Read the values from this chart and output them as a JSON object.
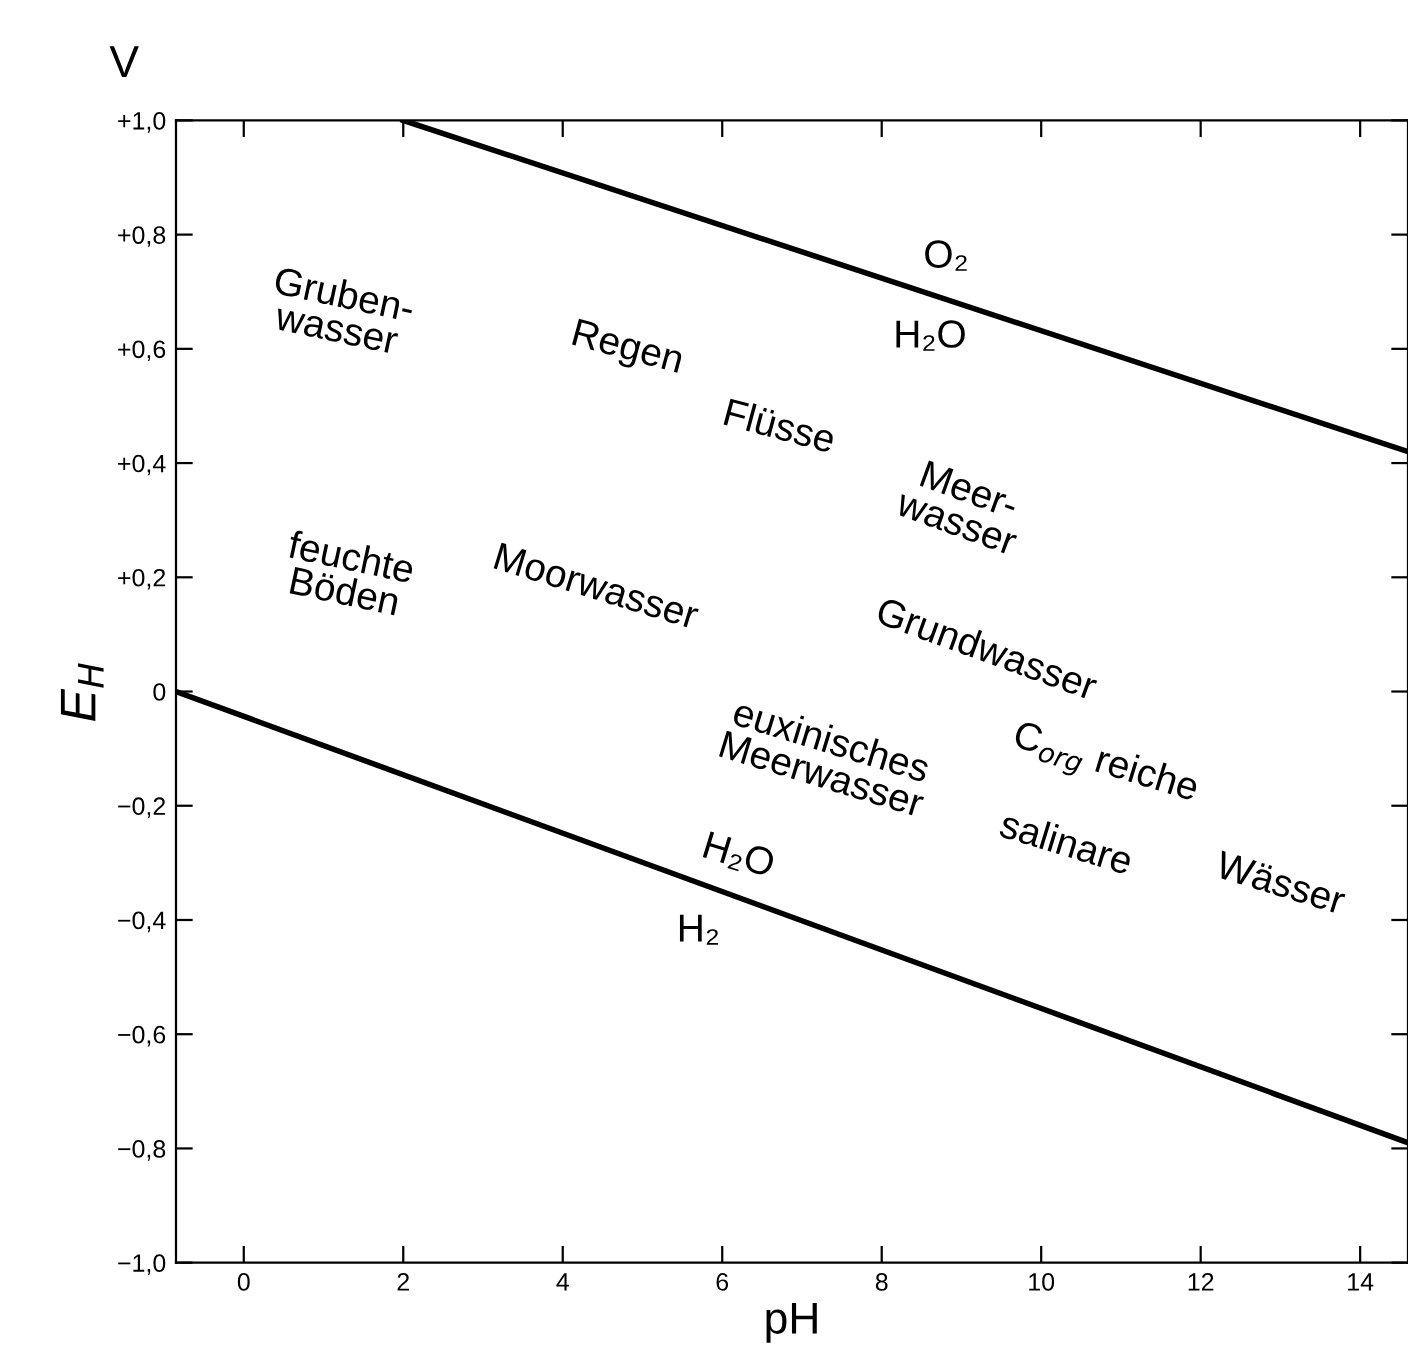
{
  "chart_data": {
    "type": "line",
    "xlabel": "pH",
    "ylabel": "E$_{H}$",
    "series": [
      {
        "color": "#000000",
        "x": [
          2,
          14.6
        ],
        "values": [
          1.0,
          0.42
        ]
      },
      {
        "color": "#000000",
        "x": [
          -0.85,
          14.6
        ],
        "values": [
          0,
          -0.79
        ]
      }
    ],
    "xlim": [
      -0.85,
      14.6
    ],
    "ylim": [
      -1.0,
      1.0
    ],
    "xticks": [
      0,
      2,
      4,
      6,
      8,
      10,
      12,
      14
    ],
    "yticks": [
      {
        "value": 1.0,
        "label": "+1,0"
      },
      {
        "value": 0.8,
        "label": "+0,8"
      },
      {
        "value": 0.6,
        "label": "+0,6"
      },
      {
        "value": 0.4,
        "label": "+0,4"
      },
      {
        "value": 0.2,
        "label": "+0,2"
      },
      0,
      {
        "value": -0.2,
        "label": "−0,2"
      },
      {
        "value": -0.4,
        "label": "−0,4"
      },
      {
        "value": -0.6,
        "label": "−0,6"
      },
      {
        "value": -0.8,
        "label": "−0,8"
      },
      {
        "value": -1.0,
        "label": "−1,0"
      }
    ],
    "grid": false,
    "legend": false,
    "marker": "none",
    "line_style": "solid",
    "annotations": [
      "V",
      "O₂",
      "H₂O",
      "Gruben-\nwasser",
      "Regen",
      "Flüsse",
      "Meer-\nwasser",
      "feuchte\nBöden",
      "Moorwasser",
      "Grundwasser",
      "euxinisches\nMeerwasser",
      "C$_{org}$ reiche",
      "salinare",
      "Wässer",
      "H₂O",
      "H₂"
    ]
  }
}
